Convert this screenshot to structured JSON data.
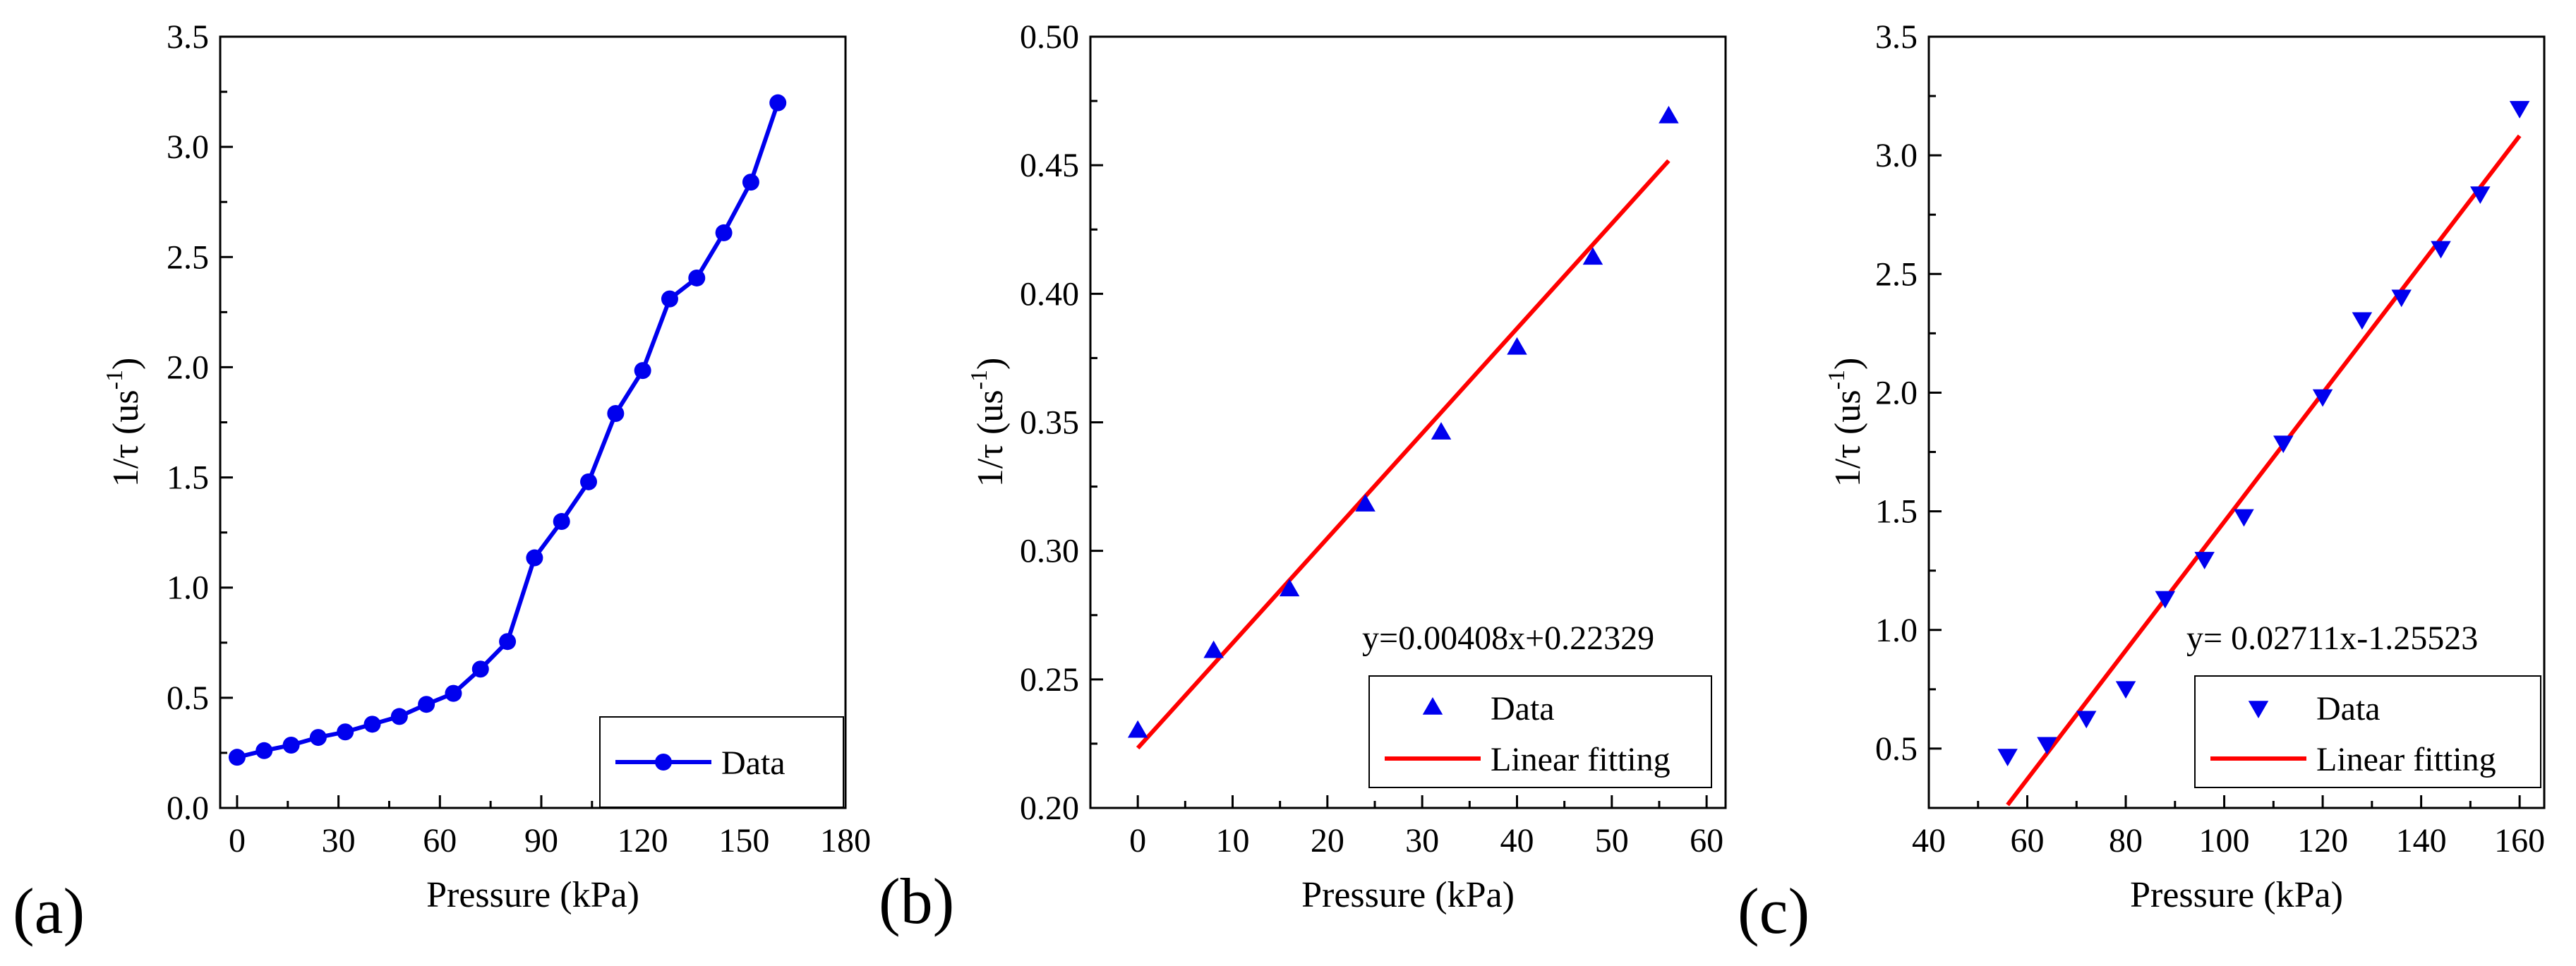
{
  "panel_labels": [
    "(a)",
    "(b)",
    "(c)"
  ],
  "colors": {
    "data": "#0000EE",
    "fit": "#FF0000",
    "axis": "#000000"
  },
  "chart_data": [
    {
      "id": "a",
      "type": "line",
      "xlabel": "Pressure (kPa)",
      "ylabel_main": "1/τ (us",
      "ylabel_sup": "-1",
      "ylabel_close": ")",
      "xlim": [
        -5,
        180
      ],
      "ylim": [
        0,
        3.5
      ],
      "xticks": [
        0,
        30,
        60,
        90,
        120,
        150,
        180
      ],
      "xtick_labels": [
        "0",
        "30",
        "60",
        "90",
        "120",
        "150",
        "180"
      ],
      "yticks": [
        0,
        0.5,
        1.0,
        1.5,
        2.0,
        2.5,
        3.0,
        3.5
      ],
      "ytick_labels": [
        "0.0",
        "0.5",
        "1.0",
        "1.5",
        "2.0",
        "2.5",
        "3.0",
        "3.5"
      ],
      "series": [
        {
          "name": "Data",
          "marker": "circle",
          "line": true,
          "x": [
            0,
            8,
            16,
            24,
            32,
            40,
            48,
            56,
            64,
            72,
            80,
            88,
            96,
            104,
            112,
            120,
            128,
            136,
            144,
            152,
            160
          ],
          "y": [
            0.23,
            0.26,
            0.285,
            0.32,
            0.345,
            0.38,
            0.415,
            0.47,
            0.52,
            0.63,
            0.755,
            1.135,
            1.3,
            1.48,
            1.79,
            1.985,
            2.31,
            2.405,
            2.61,
            2.84,
            3.2
          ]
        }
      ],
      "legend": {
        "position": "bottom-right",
        "entries": [
          {
            "label": "Data",
            "kind": "line-circle"
          }
        ]
      }
    },
    {
      "id": "b",
      "type": "scatter",
      "xlabel": "Pressure (kPa)",
      "ylabel_main": "1/τ (us",
      "ylabel_sup": "-1",
      "ylabel_close": ")",
      "xlim": [
        -5,
        62
      ],
      "ylim": [
        0.2,
        0.5
      ],
      "xticks": [
        0,
        10,
        20,
        30,
        40,
        50,
        60
      ],
      "xtick_labels": [
        "0",
        "10",
        "20",
        "30",
        "40",
        "50",
        "60"
      ],
      "yticks": [
        0.2,
        0.25,
        0.3,
        0.35,
        0.4,
        0.45,
        0.5
      ],
      "ytick_labels": [
        "0.20",
        "0.25",
        "0.30",
        "0.35",
        "0.40",
        "0.45",
        "0.50"
      ],
      "series": [
        {
          "name": "Data",
          "marker": "triangle-up",
          "line": false,
          "x": [
            0,
            8,
            16,
            24,
            32,
            40,
            48,
            56
          ],
          "y": [
            0.23,
            0.261,
            0.285,
            0.318,
            0.346,
            0.379,
            0.414,
            0.469
          ]
        }
      ],
      "fit": {
        "name": "Linear fitting",
        "slope": 0.00408,
        "intercept": 0.22329,
        "x_range": [
          0,
          56
        ]
      },
      "equation": "y=0.00408x+0.22329",
      "legend": {
        "position": "bottom-right",
        "entries": [
          {
            "label": "Data",
            "kind": "triangle-up"
          },
          {
            "label": "Linear fitting",
            "kind": "line"
          }
        ]
      }
    },
    {
      "id": "c",
      "type": "scatter",
      "xlabel": "Pressure (kPa)",
      "ylabel_main": "1/τ (us",
      "ylabel_sup": "-1",
      "ylabel_close": ")",
      "xlim": [
        40,
        165
      ],
      "ylim": [
        0.25,
        3.5
      ],
      "xticks": [
        40,
        60,
        80,
        100,
        120,
        140,
        160
      ],
      "xtick_labels": [
        "40",
        "60",
        "80",
        "100",
        "120",
        "140",
        "160"
      ],
      "yticks": [
        0.5,
        1.0,
        1.5,
        2.0,
        2.5,
        3.0,
        3.5
      ],
      "ytick_labels": [
        "0.5",
        "1.0",
        "1.5",
        "2.0",
        "2.5",
        "3.0",
        "3.5"
      ],
      "series": [
        {
          "name": "Data",
          "marker": "triangle-down",
          "line": false,
          "x": [
            56,
            64,
            72,
            80,
            88,
            96,
            104,
            112,
            120,
            128,
            136,
            144,
            152,
            160
          ],
          "y": [
            0.47,
            0.52,
            0.63,
            0.755,
            1.135,
            1.3,
            1.48,
            1.79,
            1.985,
            2.31,
            2.405,
            2.61,
            2.84,
            3.2
          ]
        }
      ],
      "fit": {
        "name": "Linear fitting",
        "slope": 0.02711,
        "intercept": -1.25523,
        "x_range": [
          56,
          160
        ]
      },
      "equation": "y= 0.02711x-1.25523",
      "legend": {
        "position": "bottom-right",
        "entries": [
          {
            "label": "Data",
            "kind": "triangle-down"
          },
          {
            "label": "Linear fitting",
            "kind": "line"
          }
        ]
      }
    }
  ]
}
